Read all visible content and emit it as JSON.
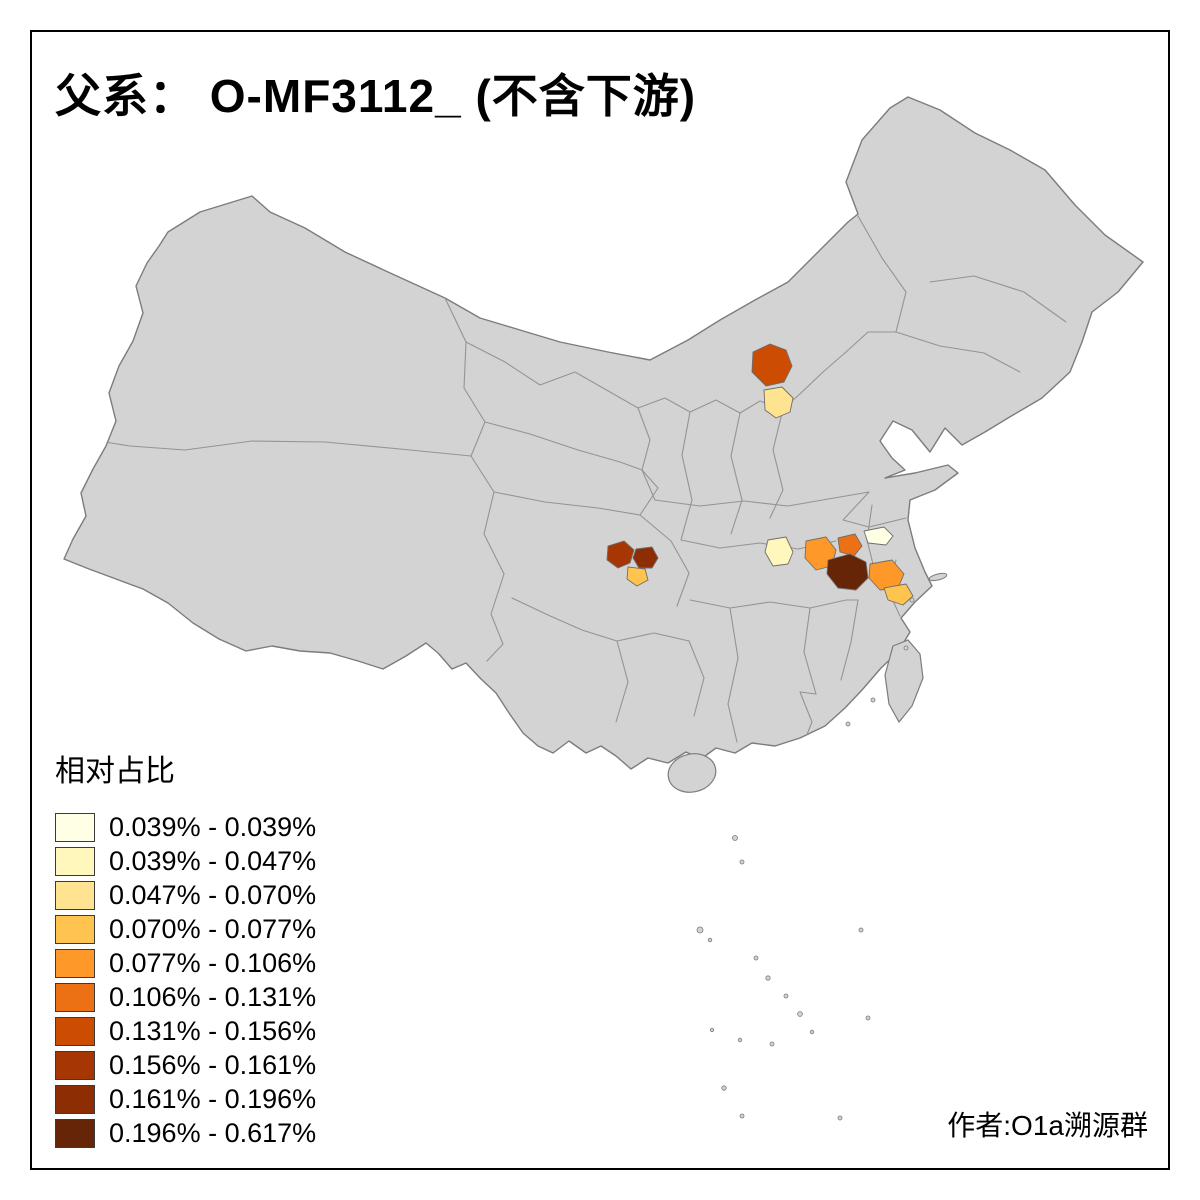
{
  "title": "父系： O-MF3112_ (不含下游)",
  "legend": {
    "title": "相对占比",
    "entries": [
      {
        "label": "0.039% - 0.039%",
        "color": "#FFFFE5"
      },
      {
        "label": "0.039% - 0.047%",
        "color": "#FFF7BC"
      },
      {
        "label": "0.047% - 0.070%",
        "color": "#FEE391"
      },
      {
        "label": "0.070% - 0.077%",
        "color": "#FEC44F"
      },
      {
        "label": "0.077% - 0.106%",
        "color": "#FE9929"
      },
      {
        "label": "0.106% - 0.131%",
        "color": "#EC7014"
      },
      {
        "label": "0.131% - 0.156%",
        "color": "#CC4C02"
      },
      {
        "label": "0.156% - 0.161%",
        "color": "#A63603"
      },
      {
        "label": "0.161% - 0.196%",
        "color": "#8C2D04"
      },
      {
        "label": "0.196% - 0.617%",
        "color": "#662506"
      }
    ]
  },
  "credit": "作者:O1a溯源群",
  "map": {
    "land_fill": "#D3D3D3",
    "land_border": "#7C7C7C",
    "province_border": "#949494",
    "frame_color": "#000000",
    "highlighted_regions": [
      {
        "color": "#CC4C02"
      },
      {
        "color": "#FEE391"
      },
      {
        "color": "#A63603"
      },
      {
        "color": "#8C2D04"
      },
      {
        "color": "#FEC44F"
      },
      {
        "color": "#FFF7BC"
      },
      {
        "color": "#FE9929"
      },
      {
        "color": "#EC7014"
      },
      {
        "color": "#FFFFE5"
      },
      {
        "color": "#662506"
      },
      {
        "color": "#FE9929"
      },
      {
        "color": "#FEC44F"
      }
    ]
  }
}
